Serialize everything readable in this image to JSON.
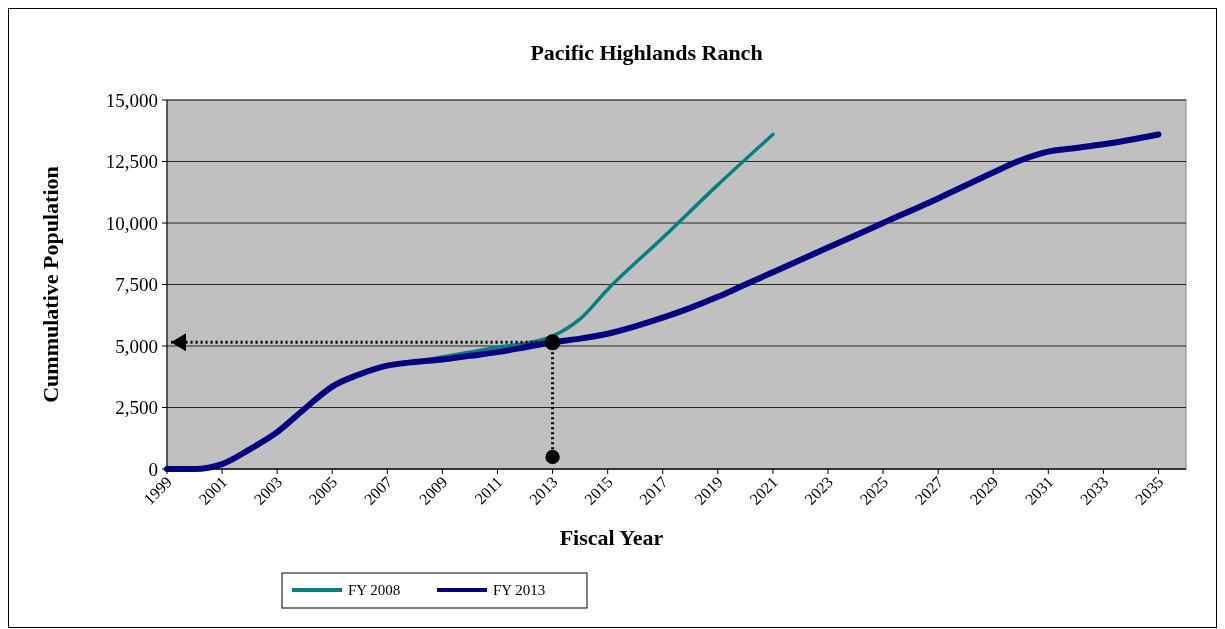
{
  "chart_data": {
    "type": "line",
    "title": "Pacific Highlands Ranch",
    "xlabel": "Fiscal Year",
    "ylabel": "Cummulative Population",
    "xlim": [
      1999,
      2036
    ],
    "xticks": [
      1999,
      2001,
      2003,
      2005,
      2007,
      2009,
      2011,
      2013,
      2015,
      2017,
      2019,
      2021,
      2023,
      2025,
      2027,
      2029,
      2031,
      2033,
      2035
    ],
    "ylim": [
      0,
      15000
    ],
    "yticks": [
      {
        "value": 0,
        "label": "0"
      },
      {
        "value": 2500,
        "label": "2,500"
      },
      {
        "value": 5000,
        "label": "5,000"
      },
      {
        "value": 7500,
        "label": "7,500"
      },
      {
        "value": 10000,
        "label": "10,000"
      },
      {
        "value": 12500,
        "label": "12,500"
      },
      {
        "value": 15000,
        "label": "15,000"
      }
    ],
    "grid": "y",
    "legend": "bottom",
    "marker": "none",
    "line_style": "solid",
    "ref_lines": [
      {
        "axis": "y",
        "value": 5150,
        "line_style": "dotted",
        "color": "#000000"
      },
      {
        "axis": "x",
        "value": 2013,
        "line_style": "dotted",
        "color": "#000000"
      }
    ],
    "series": [
      {
        "name": "FY 2008",
        "color": "#008080",
        "x": [
          2008,
          2009,
          2010,
          2011,
          2012,
          2013,
          2014,
          2015,
          2017,
          2019,
          2021
        ],
        "values": [
          4350,
          4550,
          4750,
          4950,
          5100,
          5400,
          6100,
          7300,
          9400,
          11550,
          13600
        ]
      },
      {
        "name": "FY 2013",
        "color": "#000080",
        "x": [
          1999,
          2000,
          2001,
          2002,
          2003,
          2004,
          2005,
          2006,
          2007,
          2008,
          2009,
          2010,
          2011,
          2012,
          2013,
          2014,
          2015,
          2016,
          2017,
          2018,
          2019,
          2020,
          2021,
          2023,
          2025,
          2027,
          2029,
          2030,
          2031,
          2032,
          2033,
          2035
        ],
        "values": [
          0,
          0,
          200,
          800,
          1500,
          2450,
          3350,
          3850,
          4200,
          4350,
          4450,
          4600,
          4750,
          4950,
          5150,
          5300,
          5500,
          5800,
          6150,
          6550,
          7000,
          7500,
          8000,
          9000,
          10000,
          11000,
          12050,
          12550,
          12900,
          13050,
          13200,
          13600
        ]
      }
    ]
  }
}
